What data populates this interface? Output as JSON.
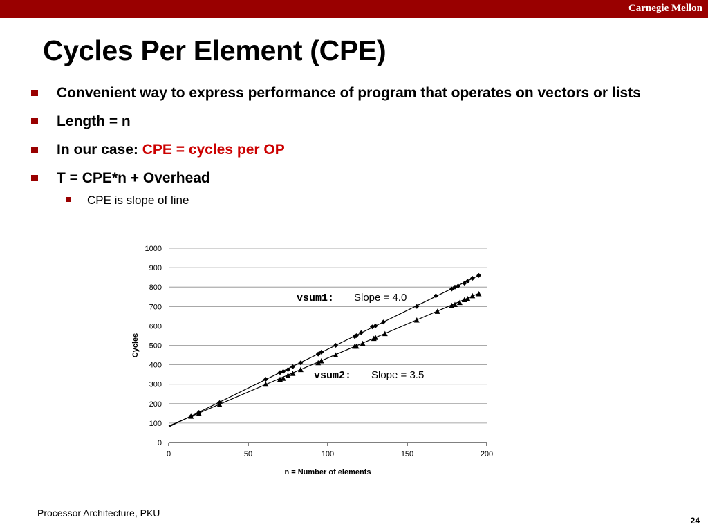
{
  "header": {
    "brand": "Carnegie Mellon"
  },
  "slide": {
    "title": "Cycles Per Element (CPE)",
    "bullets": [
      {
        "text": "Convenient way to express performance of program that operates on vectors or lists"
      },
      {
        "text": "Length = n"
      },
      {
        "prefix": "In our case: ",
        "highlight": "CPE = cycles per OP"
      },
      {
        "text": "T = CPE*n + Overhead"
      }
    ],
    "sub_bullet": "CPE is slope of line"
  },
  "chart_data": {
    "type": "scatter",
    "xlabel": "n = Number of elements",
    "ylabel": "Cycles",
    "xlim": [
      0,
      200
    ],
    "ylim": [
      0,
      1000
    ],
    "xticks": [
      "0",
      "50",
      "100",
      "150",
      "200"
    ],
    "yticks": [
      "0",
      "100",
      "200",
      "300",
      "400",
      "500",
      "600",
      "700",
      "800",
      "900",
      "1000"
    ],
    "grid": "horizontal",
    "series": [
      {
        "name": "vsum1",
        "marker": "diamond",
        "slope_label": "Slope = 4.0",
        "fit": {
          "slope": 4.0,
          "intercept": 80
        },
        "x": [
          14,
          19,
          32,
          61,
          70,
          72,
          75,
          78,
          83,
          94,
          96,
          105,
          117,
          118,
          121,
          128,
          130,
          135,
          156,
          168,
          178,
          180,
          182,
          186,
          188,
          191,
          195
        ],
        "y": [
          135,
          155,
          205,
          325,
          360,
          365,
          375,
          390,
          410,
          455,
          465,
          500,
          545,
          550,
          565,
          595,
          600,
          620,
          700,
          755,
          790,
          800,
          805,
          820,
          830,
          845,
          860
        ]
      },
      {
        "name": "vsum2",
        "marker": "triangle",
        "slope_label": "Slope = 3.5",
        "fit": {
          "slope": 3.5,
          "intercept": 85
        },
        "x": [
          14,
          19,
          32,
          61,
          70,
          72,
          75,
          78,
          83,
          94,
          96,
          105,
          117,
          118,
          122,
          129,
          130,
          136,
          156,
          169,
          178,
          180,
          183,
          186,
          188,
          191,
          195
        ],
        "y": [
          135,
          150,
          195,
          300,
          325,
          330,
          345,
          355,
          375,
          410,
          420,
          450,
          495,
          495,
          510,
          535,
          540,
          560,
          630,
          675,
          705,
          710,
          720,
          735,
          740,
          755,
          765
        ]
      }
    ]
  },
  "footer": {
    "left": "Processor Architecture, PKU",
    "page": "24"
  },
  "colors": {
    "accent": "#990000",
    "highlight": "#cc0000"
  }
}
